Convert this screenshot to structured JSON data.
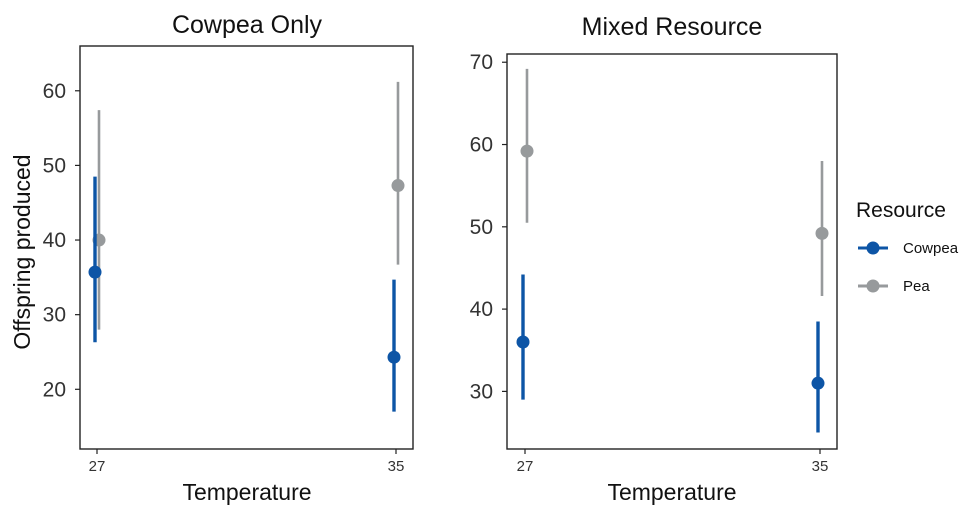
{
  "chart_data": {
    "type": "errorbar",
    "ylabel": "Offspring produced",
    "legend": {
      "title": "Resource",
      "position": "right",
      "entries": [
        {
          "name": "Cowpea",
          "color": "#0d55a6"
        },
        {
          "name": "Pea",
          "color": "#979a9c"
        }
      ]
    },
    "panels": [
      {
        "title": "Cowpea Only",
        "xlabel": "Temperature",
        "categories": [
          "27",
          "35"
        ],
        "ylim": [
          12,
          66
        ],
        "yticks": [
          20,
          30,
          40,
          50,
          60
        ],
        "series": [
          {
            "name": "Cowpea",
            "color": "#0d55a6",
            "mean": [
              35.7,
              24.3
            ],
            "lower": [
              26.3,
              17.0
            ],
            "upper": [
              48.5,
              34.7
            ]
          },
          {
            "name": "Pea",
            "color": "#979a9c",
            "mean": [
              40.0,
              47.3
            ],
            "lower": [
              28.0,
              36.7
            ],
            "upper": [
              57.4,
              61.2
            ]
          }
        ]
      },
      {
        "title": "Mixed Resource",
        "xlabel": "Temperature",
        "categories": [
          "27",
          "35"
        ],
        "ylim": [
          23,
          71
        ],
        "yticks": [
          30,
          40,
          50,
          60,
          70
        ],
        "series": [
          {
            "name": "Cowpea",
            "color": "#0d55a6",
            "mean": [
              36.0,
              31.0
            ],
            "lower": [
              29.0,
              25.0
            ],
            "upper": [
              44.2,
              38.5
            ]
          },
          {
            "name": "Pea",
            "color": "#979a9c",
            "mean": [
              59.2,
              49.2
            ],
            "lower": [
              50.5,
              41.6
            ],
            "upper": [
              69.2,
              58.0
            ]
          }
        ]
      }
    ]
  }
}
